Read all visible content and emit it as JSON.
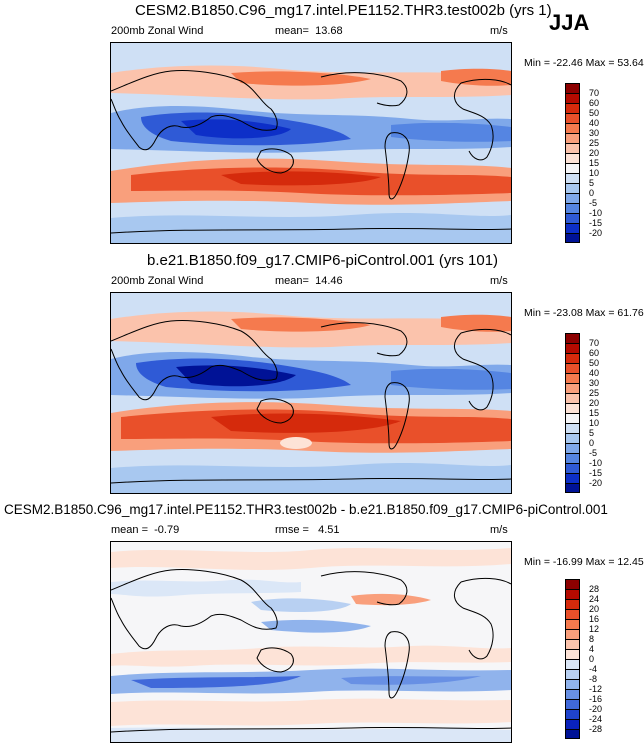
{
  "season": "JJA",
  "chart_data": [
    {
      "type": "heatmap",
      "title": "CESM2.B1850.C96_mg17.intel.PE1152.THR3.test002b (yrs 1)",
      "variable": "200mb Zonal Wind",
      "stat_label": "mean=",
      "stat_value": "13.68",
      "units": "m/s",
      "min_max": "Min = -22.46 Max = 53.64",
      "min": -22.46,
      "max": 53.64,
      "levels": [
        "70",
        "60",
        "50",
        "40",
        "30",
        "25",
        "20",
        "15",
        "10",
        "5",
        "0",
        "-5",
        "-10",
        "-15",
        "-20"
      ],
      "colors": [
        "#8c0000",
        "#b30a00",
        "#d52a0c",
        "#e9502a",
        "#f57a4e",
        "#f99f7c",
        "#fbc3ac",
        "#fde3d7",
        "#f6f6f8",
        "#cfe0f5",
        "#a8c8f0",
        "#7fa8ea",
        "#5585e2",
        "#2f5ad6",
        "#0d2fc8",
        "#001296"
      ]
    },
    {
      "type": "heatmap",
      "title": "b.e21.B1850.f09_g17.CMIP6-piControl.001 (yrs 101)",
      "variable": "200mb Zonal Wind",
      "stat_label": "mean=",
      "stat_value": "14.46",
      "units": "m/s",
      "min_max": "Min = -23.08 Max = 61.76",
      "min": -23.08,
      "max": 61.76,
      "levels": [
        "70",
        "60",
        "50",
        "40",
        "30",
        "25",
        "20",
        "15",
        "10",
        "5",
        "0",
        "-5",
        "-10",
        "-15",
        "-20"
      ],
      "colors": [
        "#8c0000",
        "#b30a00",
        "#d52a0c",
        "#e9502a",
        "#f57a4e",
        "#f99f7c",
        "#fbc3ac",
        "#fde3d7",
        "#f6f6f8",
        "#cfe0f5",
        "#a8c8f0",
        "#7fa8ea",
        "#5585e2",
        "#2f5ad6",
        "#0d2fc8",
        "#001296"
      ]
    },
    {
      "type": "heatmap",
      "title": "CESM2.B1850.C96_mg17.intel.PE1152.THR3.test002b - b.e21.B1850.f09_g17.CMIP6-piControl.001",
      "stat_label": "mean =",
      "stat_value": "-0.79",
      "stat2_label": "rmse =",
      "stat2_value": "4.51",
      "units": "m/s",
      "min_max": "Min = -16.99 Max = 12.45",
      "min": -16.99,
      "max": 12.45,
      "levels": [
        "28",
        "24",
        "20",
        "16",
        "12",
        "8",
        "4",
        "0",
        "-4",
        "-8",
        "-12",
        "-16",
        "-20",
        "-24",
        "-28"
      ],
      "colors": [
        "#8c0000",
        "#b30a00",
        "#d52a0c",
        "#e9502a",
        "#f57a4e",
        "#f99f7c",
        "#fbc3ac",
        "#fde3d7",
        "#dbe7f7",
        "#b8d0f2",
        "#90b3ec",
        "#6890e4",
        "#4069da",
        "#1f43cd",
        "#0a22bb",
        "#001296"
      ]
    }
  ]
}
